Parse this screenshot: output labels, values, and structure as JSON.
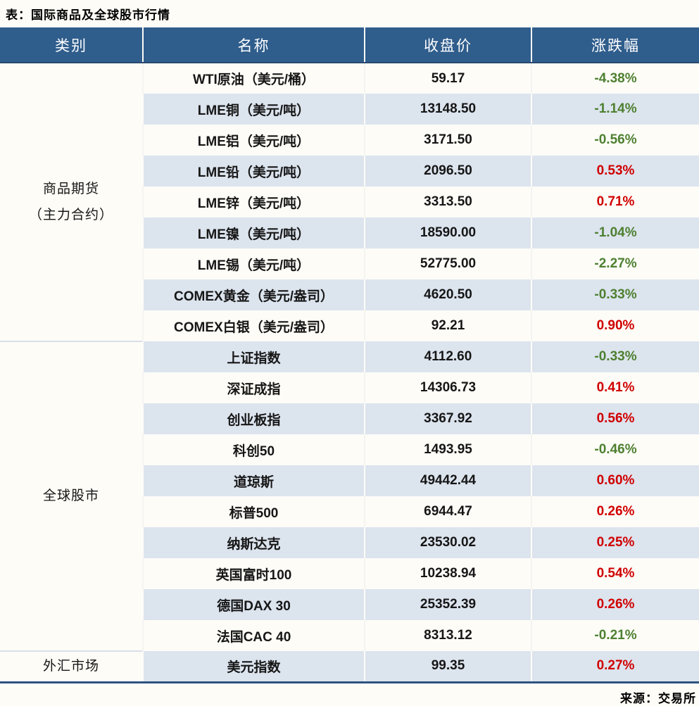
{
  "title": "表：国际商品及全球股市行情",
  "source": "来源：交易所",
  "colors": {
    "header_bg": "#2F5D8C",
    "header_text": "#FFFFFF",
    "stripe_blue": "#DCE4EE",
    "up_red": "#D00000",
    "down_green": "#4E8031",
    "bottom_rule_navy": "#2D5380",
    "category_separator": "#D9DEE8"
  },
  "table": {
    "headers": [
      "类别",
      "名称",
      "收盘价",
      "涨跌幅"
    ],
    "groups": [
      {
        "category": "商品期货\n（主力合约）",
        "separator": false,
        "rows": [
          {
            "name": "WTI原油（美元/桶）",
            "close": "59.17",
            "change": "-4.38%"
          },
          {
            "name": "LME铜（美元/吨）",
            "close": "13148.50",
            "change": "-1.14%"
          },
          {
            "name": "LME铝（美元/吨）",
            "close": "3171.50",
            "change": "-0.56%"
          },
          {
            "name": "LME铅（美元/吨）",
            "close": "2096.50",
            "change": "0.53%"
          },
          {
            "name": "LME锌（美元/吨）",
            "close": "3313.50",
            "change": "0.71%"
          },
          {
            "name": "LME镍（美元/吨）",
            "close": "18590.00",
            "change": "-1.04%"
          },
          {
            "name": "LME锡（美元/吨）",
            "close": "52775.00",
            "change": "-2.27%"
          },
          {
            "name": "COMEX黄金（美元/盎司）",
            "close": "4620.50",
            "change": "-0.33%"
          },
          {
            "name": "COMEX白银（美元/盎司）",
            "close": "92.21",
            "change": "0.90%"
          }
        ]
      },
      {
        "category": "全球股市",
        "separator": true,
        "rows": [
          {
            "name": "上证指数",
            "close": "4112.60",
            "change": "-0.33%"
          },
          {
            "name": "深证成指",
            "close": "14306.73",
            "change": "0.41%"
          },
          {
            "name": "创业板指",
            "close": "3367.92",
            "change": "0.56%"
          },
          {
            "name": "科创50",
            "close": "1493.95",
            "change": "-0.46%"
          },
          {
            "name": "道琼斯",
            "close": "49442.44",
            "change": "0.60%"
          },
          {
            "name": "标普500",
            "close": "6944.47",
            "change": "0.26%"
          },
          {
            "name": "纳斯达克",
            "close": "23530.02",
            "change": "0.25%"
          },
          {
            "name": "英国富时100",
            "close": "10238.94",
            "change": "0.54%"
          },
          {
            "name": "德国DAX 30",
            "close": "25352.39",
            "change": "0.26%"
          },
          {
            "name": "法国CAC 40",
            "close": "8313.12",
            "change": "-0.21%"
          }
        ]
      },
      {
        "category": "外汇市场",
        "separator": true,
        "rows": [
          {
            "name": "美元指数",
            "close": "99.35",
            "change": "0.27%"
          }
        ]
      }
    ]
  },
  "chart_data": {
    "type": "table",
    "title": "表：国际商品及全球股市行情",
    "columns": [
      "类别",
      "名称",
      "收盘价",
      "涨跌幅"
    ],
    "rows": [
      [
        "商品期货（主力合约）",
        "WTI原油（美元/桶）",
        59.17,
        "-4.38%"
      ],
      [
        "商品期货（主力合约）",
        "LME铜（美元/吨）",
        13148.5,
        "-1.14%"
      ],
      [
        "商品期货（主力合约）",
        "LME铝（美元/吨）",
        3171.5,
        "-0.56%"
      ],
      [
        "商品期货（主力合约）",
        "LME铅（美元/吨）",
        2096.5,
        "0.53%"
      ],
      [
        "商品期货（主力合约）",
        "LME锌（美元/吨）",
        3313.5,
        "0.71%"
      ],
      [
        "商品期货（主力合约）",
        "LME镍（美元/吨）",
        18590.0,
        "-1.04%"
      ],
      [
        "商品期货（主力合约）",
        "LME锡（美元/吨）",
        52775.0,
        "-2.27%"
      ],
      [
        "商品期货（主力合约）",
        "COMEX黄金（美元/盎司）",
        4620.5,
        "-0.33%"
      ],
      [
        "商品期货（主力合约）",
        "COMEX白银（美元/盎司）",
        92.21,
        "0.90%"
      ],
      [
        "全球股市",
        "上证指数",
        4112.6,
        "-0.33%"
      ],
      [
        "全球股市",
        "深证成指",
        14306.73,
        "0.41%"
      ],
      [
        "全球股市",
        "创业板指",
        3367.92,
        "0.56%"
      ],
      [
        "全球股市",
        "科创50",
        1493.95,
        "-0.46%"
      ],
      [
        "全球股市",
        "道琼斯",
        49442.44,
        "0.60%"
      ],
      [
        "全球股市",
        "标普500",
        6944.47,
        "0.26%"
      ],
      [
        "全球股市",
        "纳斯达克",
        23530.02,
        "0.25%"
      ],
      [
        "全球股市",
        "英国富时100",
        10238.94,
        "0.54%"
      ],
      [
        "全球股市",
        "德国DAX 30",
        25352.39,
        "0.26%"
      ],
      [
        "全球股市",
        "法国CAC 40",
        8313.12,
        "-0.21%"
      ],
      [
        "外汇市场",
        "美元指数",
        99.35,
        "0.27%"
      ]
    ],
    "note": "涨跌幅颜色约定：正值红色(#D00000)，负值绿色(#4E8031)",
    "source": "来源：交易所"
  }
}
